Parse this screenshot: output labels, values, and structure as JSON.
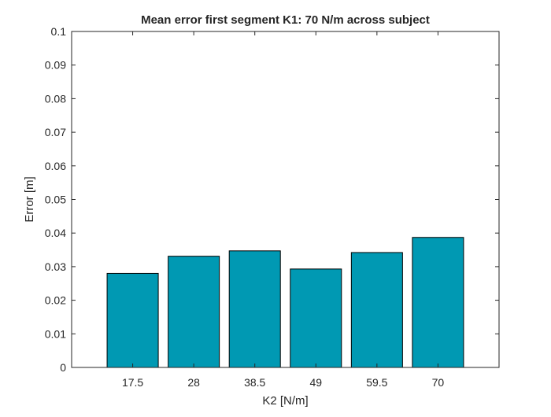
{
  "chart_data": {
    "type": "bar",
    "title": "Mean error first segment K1: 70 N/m across subject",
    "xlabel": "K2 [N/m]",
    "ylabel": "Error [m]",
    "categories": [
      "17.5",
      "28",
      "38.5",
      "49",
      "59.5",
      "70"
    ],
    "values": [
      0.028,
      0.0331,
      0.0347,
      0.0293,
      0.0342,
      0.0387
    ],
    "ylim": [
      0,
      0.1
    ],
    "yticks": [
      "0",
      "0.01",
      "0.02",
      "0.03",
      "0.04",
      "0.05",
      "0.06",
      "0.07",
      "0.08",
      "0.09",
      "0.1"
    ],
    "xlim": [
      7,
      80.5
    ],
    "grid": false,
    "bar_color": "#0099b3",
    "edge_color": "#000000"
  }
}
